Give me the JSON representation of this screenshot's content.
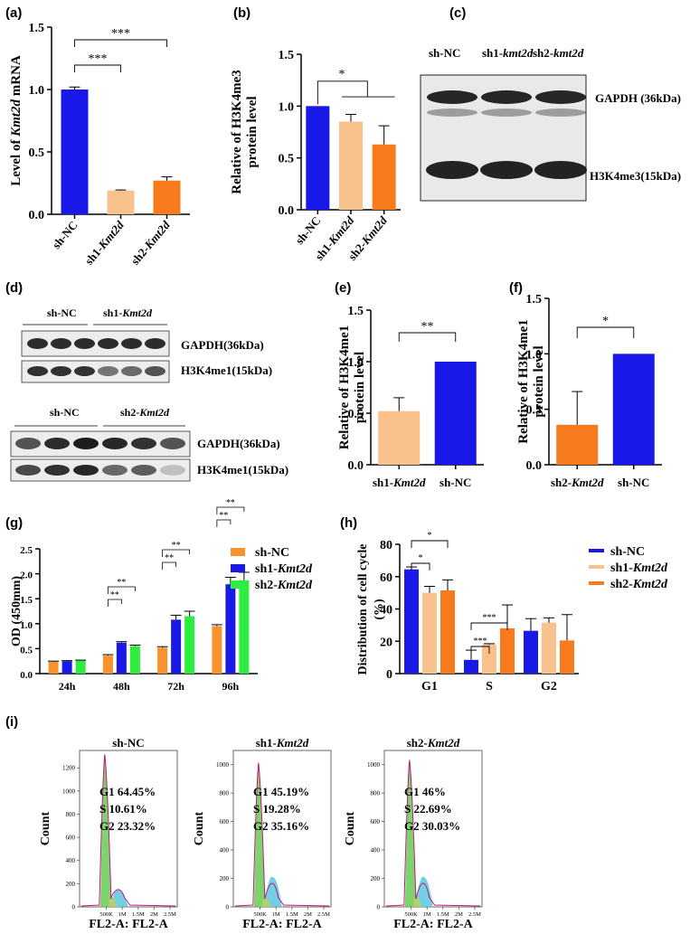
{
  "panels": {
    "a": "(a)",
    "b": "(b)",
    "c": "(c)",
    "d": "(d)",
    "e": "(e)",
    "f": "(f)",
    "g": "(g)",
    "h": "(h)",
    "i": "(i)"
  },
  "chart_data": [
    {
      "id": "a",
      "type": "bar",
      "ylabel_parts": [
        "Level of ",
        "Kmt2d",
        " mRNA"
      ],
      "ylim": [
        0,
        1.5
      ],
      "yticks": [
        "0.0",
        "0.5",
        "1.0",
        "1.5"
      ],
      "categories": [
        [
          "sh-NC",
          ""
        ],
        [
          "sh1-",
          "Kmt2d"
        ],
        [
          "sh2-",
          "Kmt2d"
        ]
      ],
      "values": [
        1.0,
        0.19,
        0.27
      ],
      "errors": [
        0.02,
        0.005,
        0.03
      ],
      "colors": [
        "#1818e8",
        "#f9c28d",
        "#f77b1d"
      ],
      "annotations": [
        "***",
        "***"
      ]
    },
    {
      "id": "b",
      "type": "bar",
      "ylabel_lines": [
        "Relative of H3K4me3",
        "protein level"
      ],
      "ylim": [
        0,
        1.5
      ],
      "yticks": [
        "0.0",
        "0.5",
        "1.0",
        "1.5"
      ],
      "categories": [
        [
          "sh-NC",
          ""
        ],
        [
          "sh1-",
          "Kmt2d"
        ],
        [
          "sh2-",
          "Kmt2d"
        ]
      ],
      "values": [
        1.0,
        0.85,
        0.63
      ],
      "errors": [
        0.0,
        0.07,
        0.18
      ],
      "colors": [
        "#1818e8",
        "#f9c28d",
        "#f77b1d"
      ],
      "annotations": [
        "*"
      ]
    },
    {
      "id": "e",
      "type": "bar",
      "ylabel_lines": [
        "Relative of H3K4me1",
        "protein level"
      ],
      "ylim": [
        0,
        1.5
      ],
      "yticks": [
        "0.0",
        "0.5",
        "1.0",
        "1.5"
      ],
      "categories": [
        [
          "sh1-",
          "Kmt2d"
        ],
        [
          "sh-NC",
          ""
        ]
      ],
      "values": [
        0.52,
        1.0
      ],
      "errors": [
        0.13,
        0.0
      ],
      "colors": [
        "#f9c28d",
        "#1818e8"
      ],
      "annotations": [
        "**"
      ]
    },
    {
      "id": "f",
      "type": "bar",
      "ylabel_lines": [
        "Relative of H3K4me1",
        "protein level"
      ],
      "ylim": [
        0,
        1.5
      ],
      "yticks": [
        "0.0",
        "0.5",
        "1.0",
        "1.5"
      ],
      "categories": [
        [
          "sh2-",
          "Kmt2d"
        ],
        [
          "sh-NC",
          ""
        ]
      ],
      "values": [
        0.36,
        1.0
      ],
      "errors": [
        0.3,
        0.0
      ],
      "colors": [
        "#f77b1d",
        "#1818e8"
      ],
      "annotations": [
        "*"
      ]
    },
    {
      "id": "g",
      "type": "bar",
      "ylabel": "OD (450mm)",
      "ylim": [
        0,
        2.5
      ],
      "yticks": [
        "0.0",
        "0.5",
        "1.0",
        "1.5",
        "2.0",
        "2.5"
      ],
      "categories": [
        "24h",
        "48h",
        "72h",
        "96h"
      ],
      "series": [
        {
          "name_parts": [
            "sh-NC",
            ""
          ],
          "color": "#f7922e",
          "values": [
            0.24,
            0.36,
            0.52,
            0.95
          ],
          "errors": [
            0.01,
            0.02,
            0.02,
            0.03
          ]
        },
        {
          "name_parts": [
            "sh1-",
            "Kmt2d"
          ],
          "color": "#1a1ae6",
          "values": [
            0.25,
            0.62,
            1.08,
            1.79
          ],
          "errors": [
            0.01,
            0.02,
            0.09,
            0.14
          ]
        },
        {
          "name_parts": [
            "sh2-",
            "Kmt2d"
          ],
          "color": "#2eec40",
          "values": [
            0.26,
            0.55,
            1.15,
            1.87
          ],
          "errors": [
            0.01,
            0.02,
            0.1,
            0.16
          ]
        }
      ],
      "annotations": [
        "**",
        "**",
        "**",
        "**",
        "**",
        "**"
      ]
    },
    {
      "id": "h",
      "type": "bar",
      "ylabel_lines": [
        "Distribution of cell cycle",
        "(%)"
      ],
      "ylim": [
        0,
        80
      ],
      "yticks": [
        "0",
        "20",
        "40",
        "60",
        "80"
      ],
      "categories": [
        "G1",
        "S",
        "G2"
      ],
      "series": [
        {
          "name_parts": [
            "sh-NC",
            ""
          ],
          "color": "#1a1ae6",
          "values": [
            64.5,
            8.5,
            26.5
          ],
          "errors": [
            1.5,
            6,
            7.5
          ]
        },
        {
          "name_parts": [
            "sh1-",
            "Kmt2d"
          ],
          "color": "#f9c28d",
          "values": [
            50,
            18,
            31.5
          ],
          "errors": [
            4,
            0.5,
            3
          ]
        },
        {
          "name_parts": [
            "sh2-",
            "Kmt2d"
          ],
          "color": "#f77b1d",
          "values": [
            51.5,
            28,
            20.5
          ],
          "errors": [
            6.5,
            14.5,
            16
          ]
        }
      ],
      "annotations": [
        "*",
        "*",
        "***",
        "***"
      ]
    }
  ],
  "blots": {
    "c": {
      "lanes": [
        [
          "sh-NC",
          ""
        ],
        [
          "sh1-",
          "kmt2d"
        ],
        [
          "sh2-",
          "kmt2d"
        ]
      ],
      "bands": [
        "GAPDH (36kDa)",
        "H3K4me3(15kDa)"
      ]
    },
    "d1": {
      "groups": [
        [
          "sh-NC",
          ""
        ],
        [
          "sh1-",
          "Kmt2d"
        ]
      ],
      "bands": [
        "GAPDH(36kDa)",
        "H3K4me1(15kDa)"
      ]
    },
    "d2": {
      "groups": [
        [
          "sh-NC",
          ""
        ],
        [
          "sh2-",
          "Kmt2d"
        ]
      ],
      "bands": [
        "GAPDH(36kDa)",
        "H3K4me1(15kDa)"
      ]
    }
  },
  "flow": {
    "xlabel": "FL2-A: FL2-A",
    "ylabel": "Count",
    "xticks": [
      "500K",
      "1M",
      "1.5M",
      "2M",
      "2.5M"
    ],
    "plots": [
      {
        "title_parts": [
          "sh-NC",
          ""
        ],
        "yticks": [
          "0",
          "200",
          "400",
          "600",
          "800",
          "1000",
          "1200"
        ],
        "ymax": 1350,
        "peak": 1300,
        "stats": [
          "G1 64.45%",
          "S  10.61%",
          "G2 23.32%"
        ]
      },
      {
        "title_parts": [
          "sh1-",
          "Kmt2d"
        ],
        "yticks": [
          "0",
          "200",
          "400",
          "600",
          "800",
          "1000"
        ],
        "ymax": 1100,
        "peak": 1000,
        "stats": [
          "G1 45.19%",
          "S  19.28%",
          "G2 35.16%"
        ]
      },
      {
        "title_parts": [
          "sh2-",
          "Kmt2d"
        ],
        "yticks": [
          "0",
          "200",
          "400",
          "600",
          "800",
          "1000"
        ],
        "ymax": 1100,
        "peak": 1020,
        "stats": [
          "G1 46%",
          "S  22.69%",
          "G2 30.03%"
        ]
      }
    ]
  }
}
